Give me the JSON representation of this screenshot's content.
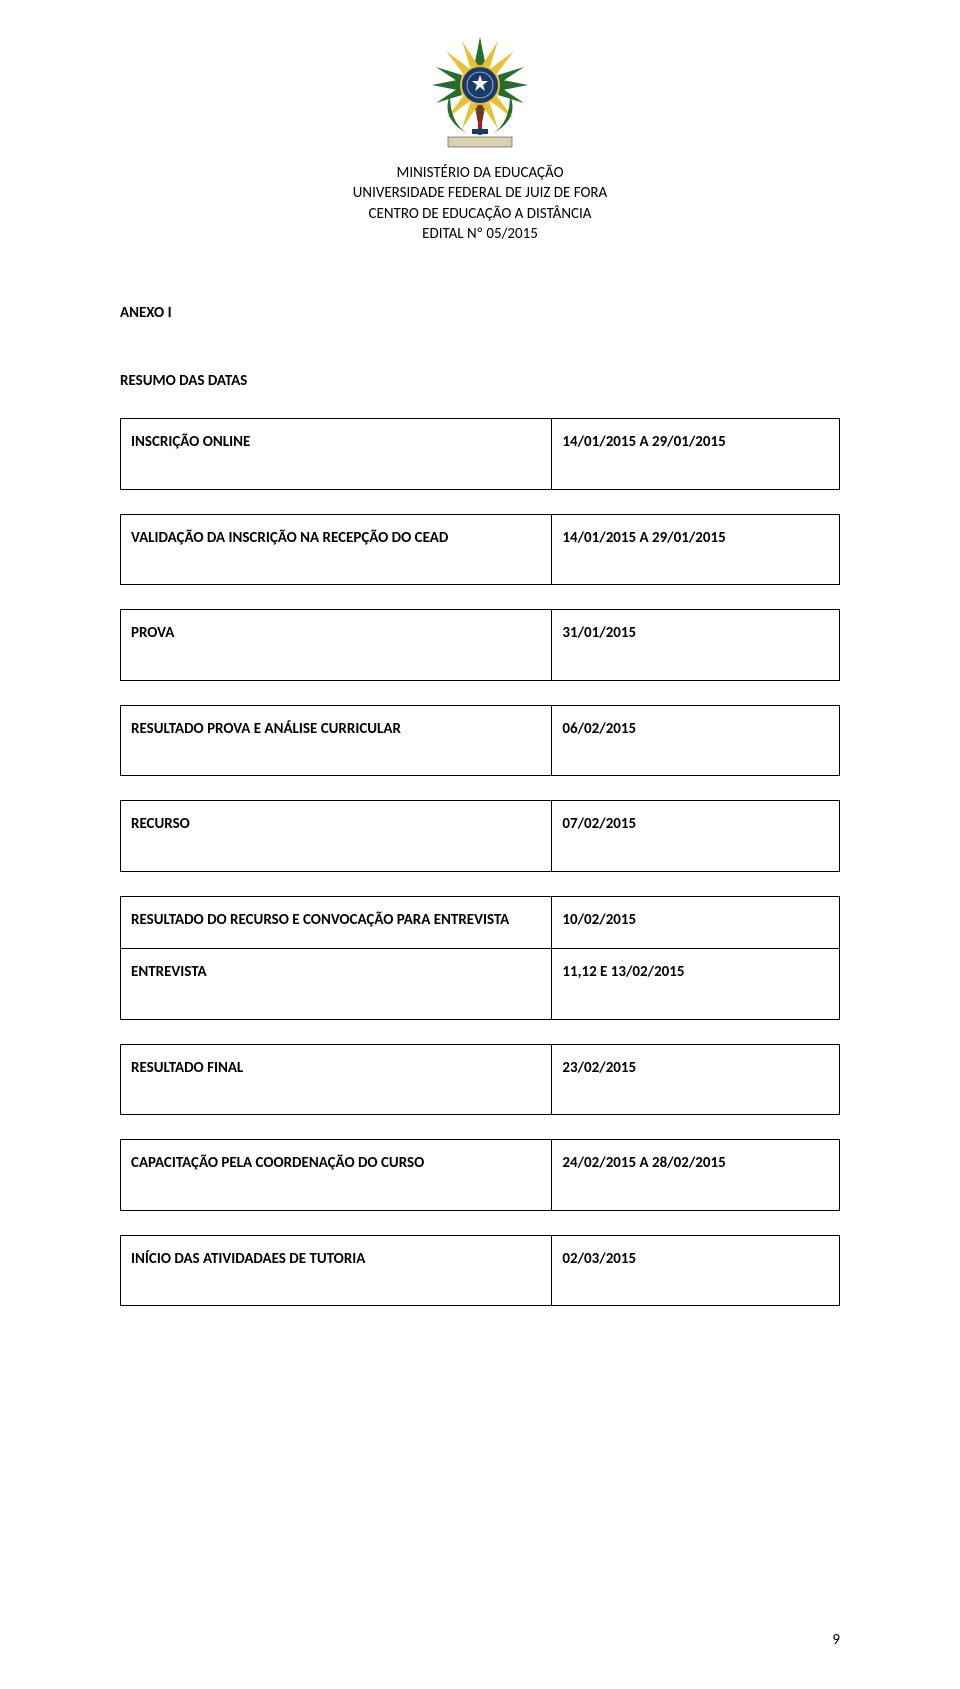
{
  "header": {
    "line1": "MINISTÉRIO DA EDUCAÇÃO",
    "line2": "UNIVERSIDADE FEDERAL DE JUIZ DE FORA",
    "line3": "CENTRO DE EDUCAÇÃO A DISTÂNCIA",
    "line4": "EDITAL Nº 05/2015"
  },
  "annex": "ANEXO I",
  "subtitle": "RESUMO DAS DATAS",
  "rows": [
    {
      "label": "INSCRIÇÃO ONLINE",
      "value": "14/01/2015 A 29/01/2015"
    },
    {
      "label": "VALIDAÇÃO DA INSCRIÇÃO NA RECEPÇÃO DO CEAD",
      "value": "14/01/2015 A 29/01/2015"
    },
    {
      "label": "PROVA",
      "value": "31/01/2015"
    },
    {
      "label": "RESULTADO PROVA E ANÁLISE CURRICULAR",
      "value": "06/02/2015"
    },
    {
      "label": "RECURSO",
      "value": "07/02/2015"
    },
    {
      "label": "RESULTADO DO RECURSO E CONVOCAÇÃO PARA ENTREVISTA",
      "value": "10/02/2015"
    },
    {
      "label": "ENTREVISTA",
      "value": "11,12 E 13/02/2015"
    },
    {
      "label": "RESULTADO FINAL",
      "value": "23/02/2015"
    },
    {
      "label": "CAPACITAÇÃO PELA COORDENAÇÃO DO CURSO",
      "value": "24/02/2015 A 28/02/2015"
    },
    {
      "label": "INÍCIO DAS ATIVIDADAES DE TUTORIA",
      "value": "02/03/2015"
    }
  ],
  "tableGroups": [
    [
      0
    ],
    [
      1
    ],
    [
      2
    ],
    [
      3
    ],
    [
      4
    ],
    [
      5,
      6
    ],
    [
      7
    ],
    [
      8
    ],
    [
      9
    ]
  ],
  "pageNumber": "9",
  "colors": {
    "text": "#000000",
    "border": "#000000",
    "background": "#ffffff",
    "emblem_blue": "#1a3a6b",
    "emblem_green": "#2a6b2f",
    "emblem_yellow": "#e8c13a",
    "emblem_red": "#a02020",
    "emblem_band": "#d9d2b0"
  },
  "fontsize": {
    "body": 15,
    "header": 15
  }
}
